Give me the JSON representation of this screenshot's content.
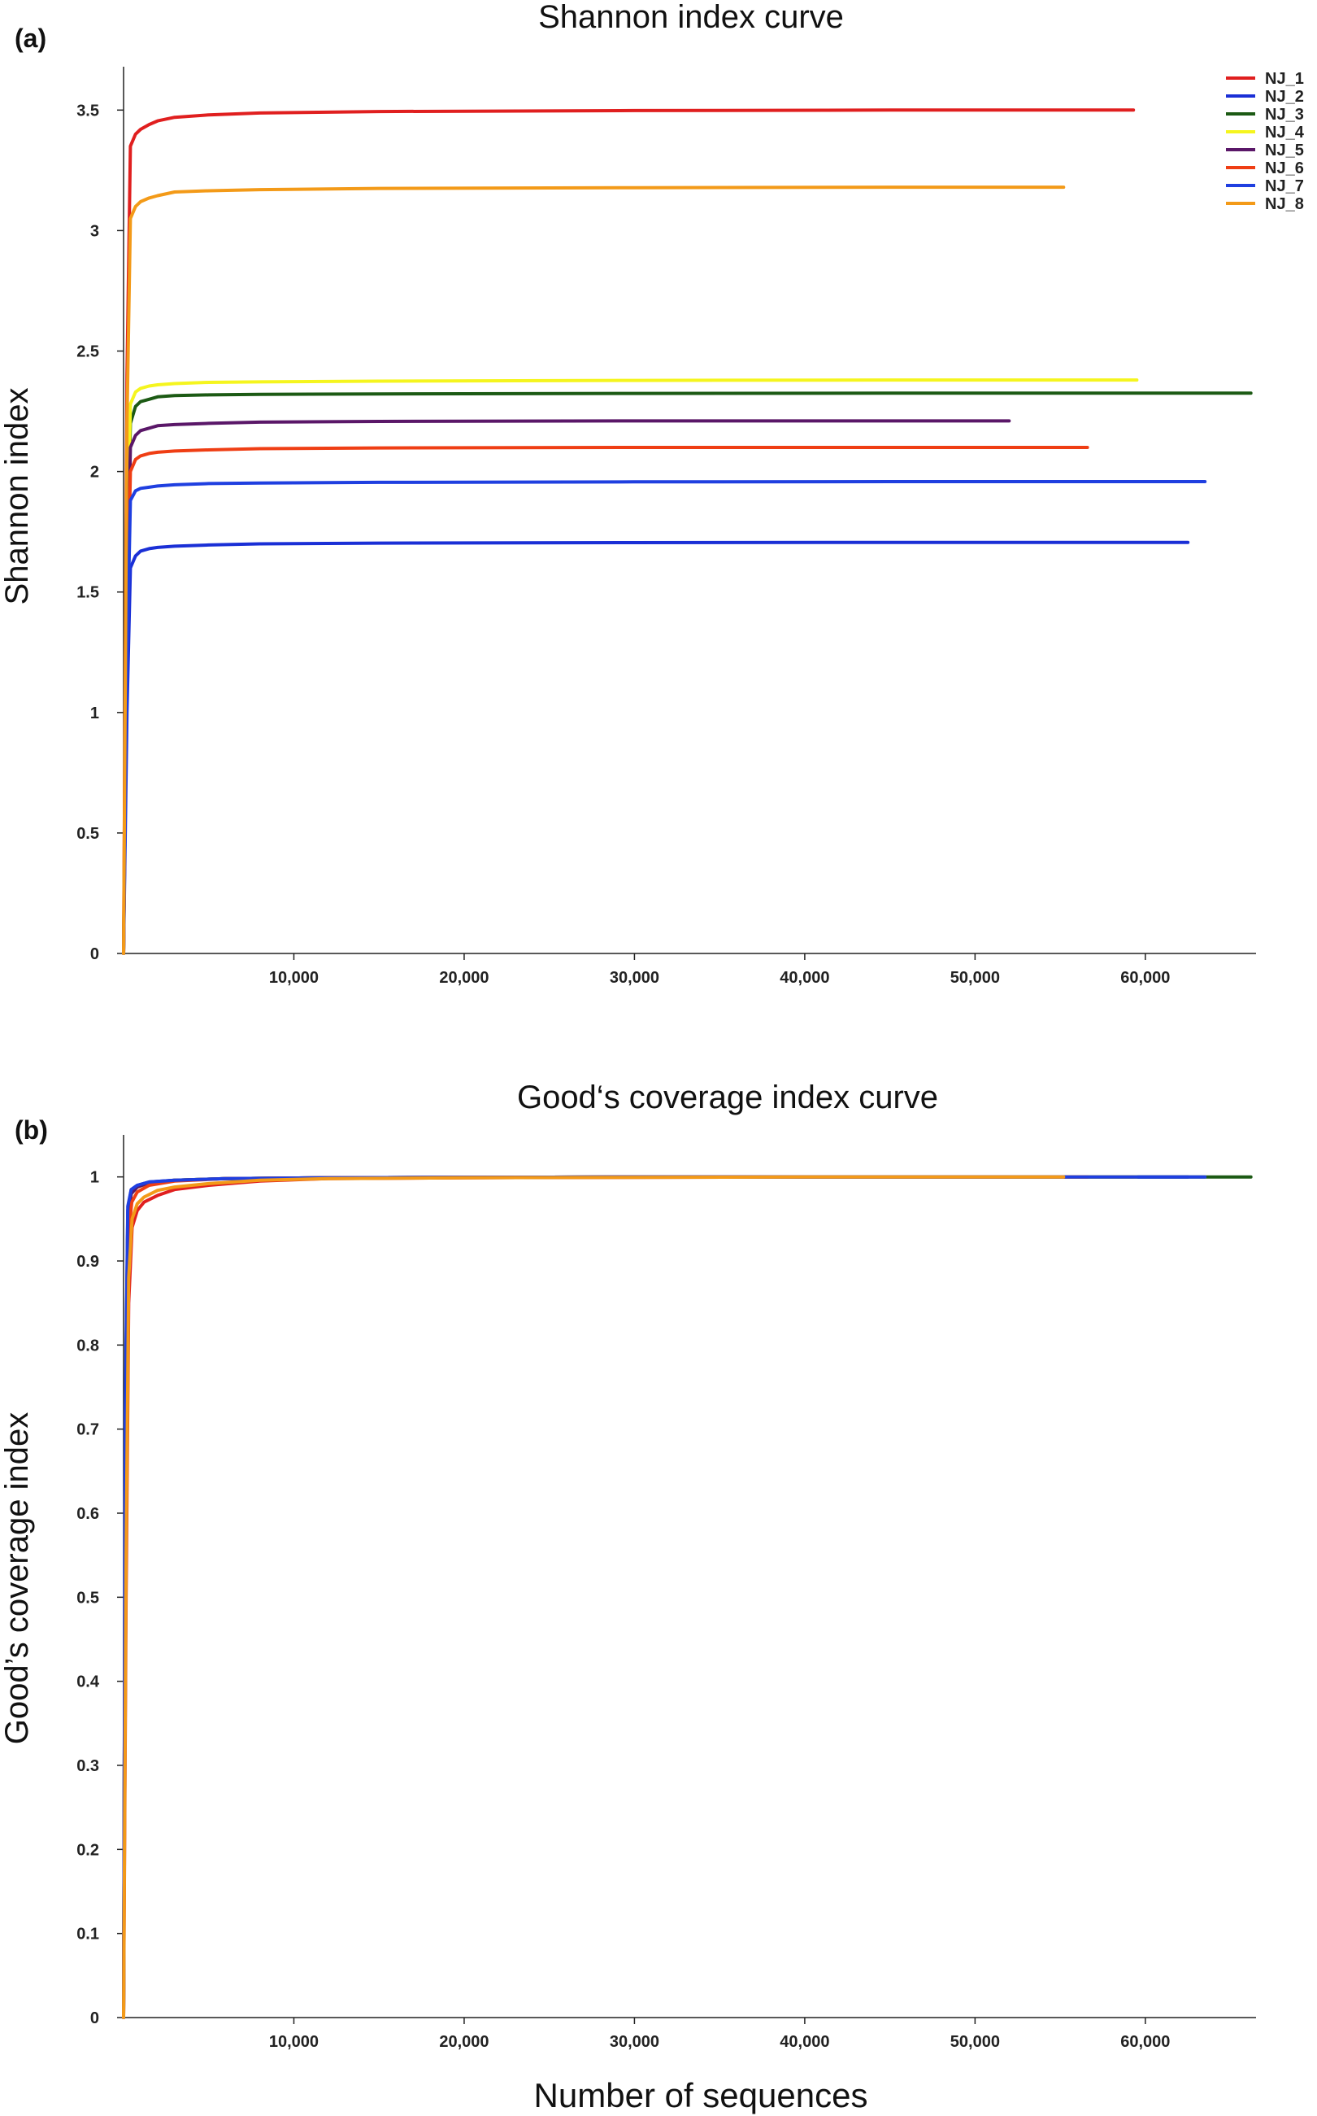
{
  "figure": {
    "panel_a_label": "(a)",
    "panel_b_label": "(b)",
    "shared_xlabel": "Number of sequences"
  },
  "legend": {
    "entries": [
      "NJ_1",
      "NJ_2",
      "NJ_3",
      "NJ_4",
      "NJ_5",
      "NJ_6",
      "NJ_7",
      "NJ_8"
    ],
    "colors": [
      "#e01f1f",
      "#1a2fd6",
      "#1c5a14",
      "#f5f51e",
      "#5a1768",
      "#ef3e14",
      "#1f3fe0",
      "#f39a18"
    ]
  },
  "chart_data": [
    {
      "type": "line",
      "title": "Shannon index curve",
      "xlabel": "",
      "ylabel": "Shannon index",
      "xlim": [
        0,
        66500
      ],
      "ylim": [
        0,
        3.68
      ],
      "xticks": [
        10000,
        20000,
        30000,
        40000,
        50000,
        60000
      ],
      "xtick_labels": [
        "10,000",
        "20,000",
        "30,000",
        "40,000",
        "50,000",
        "60,000"
      ],
      "yticks": [
        0,
        0.5,
        1,
        1.5,
        2,
        2.5,
        3,
        3.5
      ],
      "ytick_labels": [
        "0",
        "0.5",
        "1",
        "1.5",
        "2",
        "2.5",
        "3",
        "3.5"
      ],
      "grid": false,
      "legend_position": "top-right",
      "series": [
        {
          "name": "NJ_1",
          "color": "#e01f1f",
          "x": [
            0,
            200,
            400,
            700,
            1000,
            1500,
            2000,
            3000,
            5000,
            8000,
            15000,
            30000,
            45000,
            59300
          ],
          "y": [
            0,
            2.4,
            3.35,
            3.4,
            3.42,
            3.44,
            3.455,
            3.47,
            3.48,
            3.488,
            3.494,
            3.498,
            3.5,
            3.5
          ]
        },
        {
          "name": "NJ_2",
          "color": "#1a2fd6",
          "x": [
            0,
            200,
            400,
            700,
            1000,
            1500,
            2000,
            3000,
            5000,
            8000,
            15000,
            30000,
            45000,
            62500
          ],
          "y": [
            0,
            1.0,
            1.6,
            1.65,
            1.67,
            1.68,
            1.685,
            1.69,
            1.695,
            1.7,
            1.703,
            1.705,
            1.706,
            1.706
          ]
        },
        {
          "name": "NJ_3",
          "color": "#1c5a14",
          "x": [
            0,
            200,
            400,
            700,
            1000,
            1500,
            2000,
            3000,
            5000,
            8000,
            15000,
            30000,
            45000,
            66200
          ],
          "y": [
            0,
            1.5,
            2.2,
            2.27,
            2.29,
            2.3,
            2.31,
            2.315,
            2.318,
            2.32,
            2.322,
            2.324,
            2.325,
            2.325
          ]
        },
        {
          "name": "NJ_4",
          "color": "#f5f51e",
          "x": [
            0,
            200,
            400,
            700,
            1000,
            1500,
            2000,
            3000,
            5000,
            8000,
            15000,
            30000,
            45000,
            59500
          ],
          "y": [
            0,
            1.6,
            2.28,
            2.33,
            2.345,
            2.355,
            2.36,
            2.365,
            2.37,
            2.372,
            2.375,
            2.378,
            2.38,
            2.38
          ]
        },
        {
          "name": "NJ_5",
          "color": "#5a1768",
          "x": [
            0,
            200,
            400,
            700,
            1000,
            1500,
            2000,
            3000,
            5000,
            8000,
            15000,
            30000,
            45000,
            52000
          ],
          "y": [
            0,
            1.4,
            2.1,
            2.15,
            2.17,
            2.18,
            2.19,
            2.195,
            2.2,
            2.205,
            2.208,
            2.21,
            2.21,
            2.21
          ]
        },
        {
          "name": "NJ_6",
          "color": "#ef3e14",
          "x": [
            0,
            200,
            400,
            700,
            1000,
            1500,
            2000,
            3000,
            5000,
            8000,
            15000,
            30000,
            45000,
            56600
          ],
          "y": [
            0,
            1.3,
            2.0,
            2.05,
            2.065,
            2.075,
            2.08,
            2.085,
            2.09,
            2.095,
            2.098,
            2.1,
            2.1,
            2.1
          ]
        },
        {
          "name": "NJ_7",
          "color": "#1f3fe0",
          "x": [
            0,
            200,
            400,
            700,
            1000,
            1500,
            2000,
            3000,
            5000,
            8000,
            15000,
            30000,
            45000,
            63500
          ],
          "y": [
            0,
            1.2,
            1.88,
            1.92,
            1.93,
            1.935,
            1.94,
            1.945,
            1.95,
            1.952,
            1.955,
            1.957,
            1.958,
            1.958
          ]
        },
        {
          "name": "NJ_8",
          "color": "#f39a18",
          "x": [
            0,
            200,
            400,
            700,
            1000,
            1500,
            2000,
            3000,
            5000,
            8000,
            15000,
            30000,
            45000,
            55200
          ],
          "y": [
            0,
            2.2,
            3.05,
            3.1,
            3.12,
            3.135,
            3.145,
            3.16,
            3.165,
            3.17,
            3.175,
            3.178,
            3.18,
            3.18
          ]
        }
      ]
    },
    {
      "type": "line",
      "title": "Good‘s coverage index curve",
      "xlabel": "Number of sequences",
      "ylabel": "Good’s coverage index",
      "xlim": [
        0,
        66500
      ],
      "ylim": [
        0,
        1.05
      ],
      "xticks": [
        10000,
        20000,
        30000,
        40000,
        50000,
        60000
      ],
      "xtick_labels": [
        "10,000",
        "20,000",
        "30,000",
        "40,000",
        "50,000",
        "60,000"
      ],
      "yticks": [
        0,
        0.1,
        0.2,
        0.3,
        0.4,
        0.5,
        0.6,
        0.7,
        0.8,
        0.9,
        1
      ],
      "ytick_labels": [
        "0",
        "0.1",
        "0.2",
        "0.3",
        "0.4",
        "0.5",
        "0.6",
        "0.7",
        "0.8",
        "0.9",
        "1"
      ],
      "grid": false,
      "legend_position": "none",
      "series": [
        {
          "name": "NJ_1",
          "color": "#e01f1f",
          "x": [
            0,
            150,
            300,
            500,
            800,
            1200,
            2000,
            3000,
            5000,
            8000,
            12000,
            20000,
            40000,
            59300
          ],
          "y": [
            0,
            0.5,
            0.85,
            0.94,
            0.96,
            0.97,
            0.978,
            0.985,
            0.99,
            0.995,
            0.998,
            0.999,
            1.0,
            1.0
          ]
        },
        {
          "name": "NJ_2",
          "color": "#1a2fd6",
          "x": [
            0,
            100,
            250,
            450,
            800,
            1500,
            3000,
            6000,
            12000,
            30000,
            62500
          ],
          "y": [
            0,
            0.7,
            0.96,
            0.985,
            0.99,
            0.994,
            0.996,
            0.998,
            0.999,
            1.0,
            1.0
          ]
        },
        {
          "name": "NJ_3",
          "color": "#1c5a14",
          "x": [
            0,
            100,
            250,
            450,
            800,
            1500,
            3000,
            6000,
            12000,
            30000,
            66200
          ],
          "y": [
            0,
            0.68,
            0.95,
            0.98,
            0.988,
            0.993,
            0.996,
            0.998,
            0.999,
            1.0,
            1.0
          ]
        },
        {
          "name": "NJ_4",
          "color": "#f5f51e",
          "x": [
            0,
            100,
            250,
            450,
            800,
            1500,
            3000,
            6000,
            12000,
            30000,
            59500
          ],
          "y": [
            0,
            0.66,
            0.95,
            0.98,
            0.988,
            0.993,
            0.996,
            0.998,
            0.999,
            1.0,
            1.0
          ]
        },
        {
          "name": "NJ_5",
          "color": "#5a1768",
          "x": [
            0,
            100,
            250,
            450,
            800,
            1500,
            3000,
            6000,
            12000,
            30000,
            52000
          ],
          "y": [
            0,
            0.67,
            0.95,
            0.98,
            0.988,
            0.993,
            0.996,
            0.998,
            0.999,
            1.0,
            1.0
          ]
        },
        {
          "name": "NJ_6",
          "color": "#ef3e14",
          "x": [
            0,
            120,
            280,
            480,
            800,
            1500,
            3000,
            6000,
            12000,
            30000,
            56600
          ],
          "y": [
            0,
            0.62,
            0.93,
            0.97,
            0.982,
            0.99,
            0.995,
            0.998,
            0.999,
            1.0,
            1.0
          ]
        },
        {
          "name": "NJ_7",
          "color": "#1f3fe0",
          "x": [
            0,
            100,
            250,
            450,
            800,
            1500,
            3000,
            6000,
            12000,
            30000,
            63500
          ],
          "y": [
            0,
            0.72,
            0.965,
            0.985,
            0.99,
            0.994,
            0.996,
            0.998,
            0.999,
            1.0,
            1.0
          ]
        },
        {
          "name": "NJ_8",
          "color": "#f39a18",
          "x": [
            0,
            150,
            300,
            500,
            800,
            1200,
            2000,
            3000,
            5000,
            8000,
            12000,
            20000,
            40000,
            55200
          ],
          "y": [
            0,
            0.55,
            0.88,
            0.95,
            0.968,
            0.976,
            0.984,
            0.988,
            0.992,
            0.996,
            0.998,
            0.999,
            1.0,
            1.0
          ]
        }
      ]
    }
  ]
}
